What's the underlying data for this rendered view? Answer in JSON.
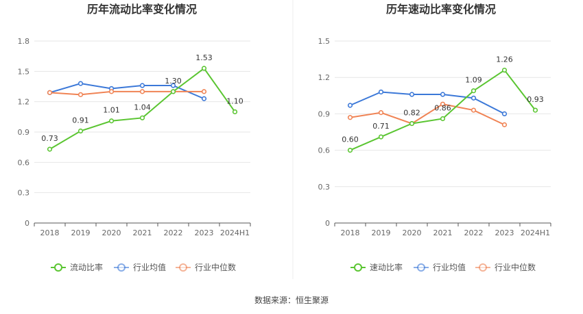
{
  "chart_data": [
    {
      "type": "line",
      "title": "历年流动比率变化情况",
      "categories": [
        "2018",
        "2019",
        "2020",
        "2021",
        "2022",
        "2023",
        "2024H1"
      ],
      "y_ticks": [
        "0",
        "0.3",
        "0.6",
        "0.9",
        "1.2",
        "1.5",
        "1.8"
      ],
      "ylim": [
        0,
        1.8
      ],
      "grid": true,
      "legend_position": "bottom",
      "series": [
        {
          "name": "流动比率",
          "color": "#5ac531",
          "values": [
            0.73,
            0.91,
            1.01,
            1.04,
            1.3,
            1.53,
            1.1
          ],
          "labels": [
            "0.73",
            "0.91",
            "1.01",
            "1.04",
            "1.30",
            "1.53",
            "1.10"
          ]
        },
        {
          "name": "行业均值",
          "color": "#3b78d8",
          "values": [
            1.29,
            1.38,
            1.33,
            1.36,
            1.36,
            1.23,
            null
          ]
        },
        {
          "name": "行业中位数",
          "color": "#f08354",
          "values": [
            1.29,
            1.27,
            1.3,
            1.3,
            1.3,
            1.3,
            null
          ]
        }
      ]
    },
    {
      "type": "line",
      "title": "历年速动比率变化情况",
      "categories": [
        "2018",
        "2019",
        "2020",
        "2021",
        "2022",
        "2023",
        "2024H1"
      ],
      "y_ticks": [
        "0",
        "0.3",
        "0.6",
        "0.9",
        "1.2",
        "1.5"
      ],
      "ylim": [
        0,
        1.5
      ],
      "grid": true,
      "legend_position": "bottom",
      "series": [
        {
          "name": "速动比率",
          "color": "#5ac531",
          "values": [
            0.6,
            0.71,
            0.82,
            0.86,
            1.09,
            1.26,
            0.93
          ],
          "labels": [
            "0.60",
            "0.71",
            "0.82",
            "0.86",
            "1.09",
            "1.26",
            "0.93"
          ]
        },
        {
          "name": "行业均值",
          "color": "#3b78d8",
          "values": [
            0.97,
            1.08,
            1.06,
            1.06,
            1.03,
            0.9,
            null
          ]
        },
        {
          "name": "行业中位数",
          "color": "#f08354",
          "values": [
            0.87,
            0.91,
            0.82,
            0.98,
            0.93,
            0.81,
            null
          ]
        }
      ]
    }
  ],
  "footer": {
    "source": "数据来源：恒生聚源"
  }
}
